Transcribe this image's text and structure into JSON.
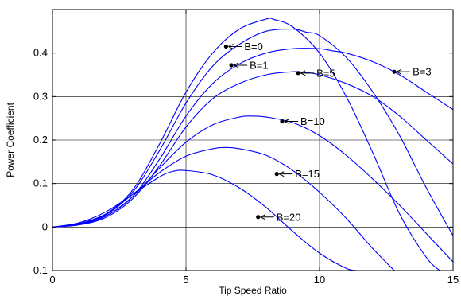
{
  "chart_data": {
    "type": "line",
    "title": "",
    "xlabel": "Tip Speed Ratio",
    "ylabel": "Power Coefficient",
    "xlim": [
      0,
      15
    ],
    "ylim": [
      -0.1,
      0.5
    ],
    "x_ticks": [
      0,
      5,
      10,
      15
    ],
    "y_ticks": [
      -0.1,
      0,
      0.1,
      0.2,
      0.3,
      0.4
    ],
    "grid": true,
    "line_color": "#0000ff",
    "series": [
      {
        "name": "B=0",
        "x": [
          0,
          1,
          2,
          3,
          4,
          5,
          6,
          7,
          8,
          8.3,
          9,
          10,
          11,
          12,
          13,
          14,
          14.5
        ],
        "y": [
          0,
          0.008,
          0.03,
          0.085,
          0.19,
          0.31,
          0.4,
          0.455,
          0.478,
          0.477,
          0.46,
          0.4,
          0.3,
          0.17,
          0.03,
          -0.07,
          -0.1
        ]
      },
      {
        "name": "B=1",
        "x": [
          0,
          1,
          2,
          3,
          4,
          5,
          6,
          7,
          8,
          9,
          9.5,
          10,
          11,
          12,
          13,
          14,
          15
        ],
        "y": [
          0,
          0.007,
          0.028,
          0.08,
          0.175,
          0.285,
          0.37,
          0.42,
          0.45,
          0.455,
          0.448,
          0.44,
          0.39,
          0.31,
          0.21,
          0.09,
          -0.02
        ]
      },
      {
        "name": "B=3",
        "x": [
          0,
          1,
          2,
          3,
          4,
          5,
          6,
          7,
          8,
          9,
          10,
          10.5,
          11,
          12,
          13,
          14,
          15
        ],
        "y": [
          0,
          0.006,
          0.025,
          0.07,
          0.155,
          0.255,
          0.33,
          0.375,
          0.4,
          0.41,
          0.41,
          0.405,
          0.4,
          0.38,
          0.35,
          0.31,
          0.27
        ]
      },
      {
        "name": "B=5",
        "x": [
          0,
          1,
          2,
          3,
          4,
          5,
          6,
          7,
          8,
          9,
          9.5,
          10,
          11,
          12,
          13,
          14,
          15
        ],
        "y": [
          0,
          0.005,
          0.022,
          0.065,
          0.14,
          0.23,
          0.295,
          0.33,
          0.35,
          0.357,
          0.355,
          0.35,
          0.33,
          0.3,
          0.255,
          0.2,
          0.145
        ]
      },
      {
        "name": "B=10",
        "x": [
          0,
          1,
          2,
          3,
          4,
          5,
          6,
          7,
          7.5,
          8,
          9,
          10,
          11,
          12,
          13,
          14,
          15
        ],
        "y": [
          0,
          0.006,
          0.025,
          0.07,
          0.135,
          0.195,
          0.235,
          0.253,
          0.255,
          0.253,
          0.24,
          0.21,
          0.165,
          0.11,
          0.05,
          -0.015,
          -0.08
        ]
      },
      {
        "name": "B=15",
        "x": [
          0,
          1,
          2,
          3,
          4,
          5,
          6,
          6.5,
          7,
          8,
          9,
          10,
          11,
          12,
          12.8
        ],
        "y": [
          0,
          0.008,
          0.03,
          0.075,
          0.125,
          0.163,
          0.18,
          0.183,
          0.18,
          0.165,
          0.13,
          0.08,
          0.02,
          -0.05,
          -0.1
        ]
      },
      {
        "name": "B=20",
        "x": [
          0,
          1,
          2,
          3,
          4,
          4.5,
          5,
          6,
          7,
          8,
          9,
          10,
          11,
          11.4
        ],
        "y": [
          0,
          0.01,
          0.035,
          0.075,
          0.115,
          0.128,
          0.13,
          0.12,
          0.09,
          0.045,
          -0.01,
          -0.06,
          -0.095,
          -0.1
        ]
      }
    ],
    "annotations": [
      {
        "text": "B=0",
        "x": 6.5,
        "y": 0.415
      },
      {
        "text": "B=1",
        "x": 6.7,
        "y": 0.372
      },
      {
        "text": "B=5",
        "x": 9.2,
        "y": 0.354
      },
      {
        "text": "B=3",
        "x": 12.8,
        "y": 0.357
      },
      {
        "text": "B=10",
        "x": 8.6,
        "y": 0.243
      },
      {
        "text": "B=15",
        "x": 8.4,
        "y": 0.122
      },
      {
        "text": "B=20",
        "x": 7.7,
        "y": 0.023
      }
    ]
  }
}
